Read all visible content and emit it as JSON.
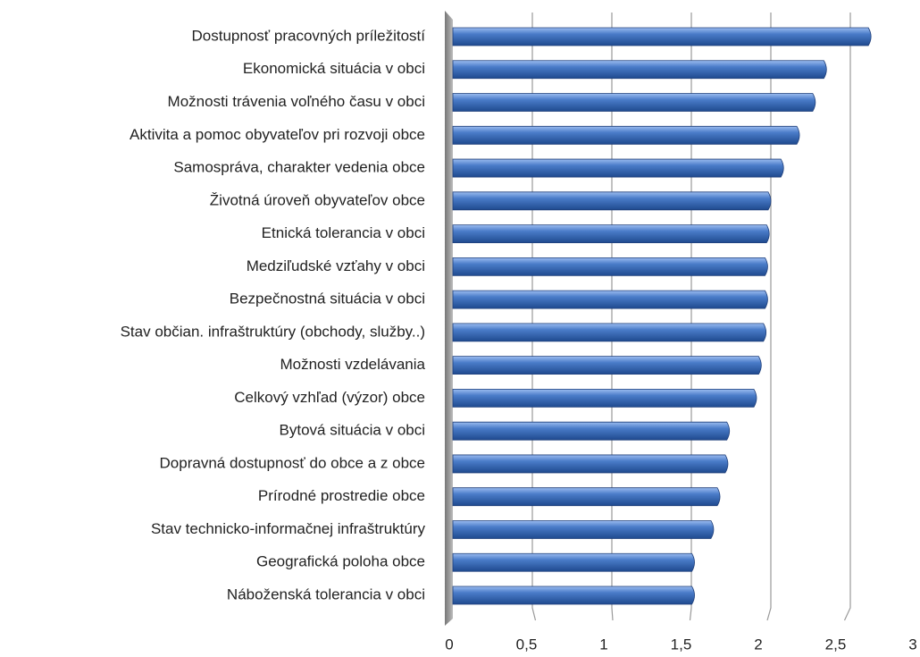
{
  "chart_data": {
    "type": "bar",
    "orientation": "horizontal",
    "color": "#4a7cc9",
    "categories": [
      "Dostupnosť pracovných príležitostí",
      "Ekonomická  situácia v obci",
      "Možnosti trávenia voľného času v obci",
      "Aktivita a pomoc obyvateľov pri rozvoji obce",
      "Samospráva, charakter vedenia obce",
      "Životná úroveň obyvateľov obce",
      "Etnická tolerancia v obci",
      "Medziľudské vzťahy v obci",
      "Bezpečnostná situácia v obci",
      "Stav občian. infraštruktúry (obchody, služby..)",
      "Možnosti vzdelávania",
      "Celkový vzhľad (výzor) obce",
      "Bytová situácia v obci",
      "Dopravná dostupnosť do obce a z obce",
      "Prírodné prostredie obce",
      "Stav technicko-informačnej infraštruktúry",
      "Geografická poloha obce",
      "Náboženská tolerancia v obci"
    ],
    "values": [
      2.63,
      2.35,
      2.28,
      2.18,
      2.08,
      2.0,
      1.99,
      1.98,
      1.98,
      1.97,
      1.94,
      1.91,
      1.74,
      1.73,
      1.68,
      1.64,
      1.52,
      1.52
    ],
    "xlim": [
      0,
      3
    ],
    "xticks": [
      0,
      {
        "value": 0.5,
        "label": "0,5"
      },
      1,
      {
        "value": 1.5,
        "label": "1,5"
      },
      2,
      {
        "value": 2.5,
        "label": "2,5"
      },
      3
    ],
    "grid": true
  }
}
